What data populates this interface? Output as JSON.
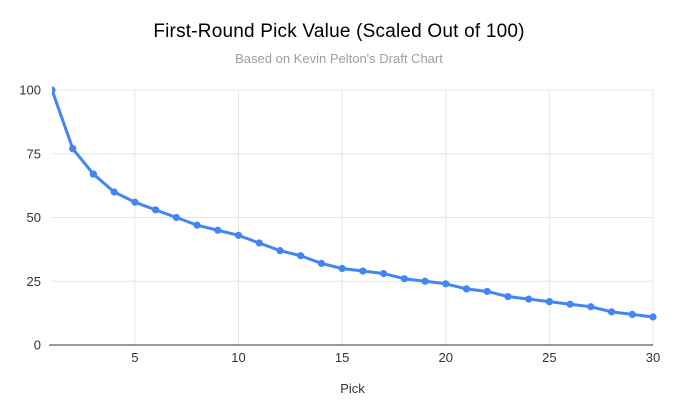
{
  "chart": {
    "title": "First-Round Pick Value (Scaled Out of 100)",
    "subtitle": "Based on Kevin Pelton's Draft Chart"
  },
  "chart_data": {
    "type": "line",
    "title": "First-Round Pick Value (Scaled Out of 100)",
    "subtitle": "Based on Kevin Pelton's Draft Chart",
    "xlabel": "Pick",
    "ylabel": "",
    "x": [
      1,
      2,
      3,
      4,
      5,
      6,
      7,
      8,
      9,
      10,
      11,
      12,
      13,
      14,
      15,
      16,
      17,
      18,
      19,
      20,
      21,
      22,
      23,
      24,
      25,
      26,
      27,
      28,
      29,
      30
    ],
    "values": [
      100,
      77,
      67,
      60,
      56,
      53,
      50,
      47,
      45,
      43,
      40,
      37,
      35,
      32,
      30,
      29,
      28,
      26,
      25,
      24,
      22,
      21,
      19,
      18,
      17,
      16,
      15,
      13,
      12,
      11
    ],
    "xlim": [
      1,
      30
    ],
    "ylim": [
      0,
      100
    ],
    "xticks": [
      5,
      10,
      15,
      20,
      25,
      30
    ],
    "yticks": [
      0,
      25,
      50,
      75,
      100
    ],
    "grid": true,
    "legend": "none",
    "marker": "circle"
  },
  "colors": {
    "line": "#4285f4",
    "marker": "#4285f4",
    "grid": "#e6e6e6",
    "axis_line": "#333333",
    "tick_label": "#333333",
    "axis_title": "#333333",
    "title": "#000000",
    "subtitle": "#9e9e9e",
    "background": "#ffffff"
  }
}
